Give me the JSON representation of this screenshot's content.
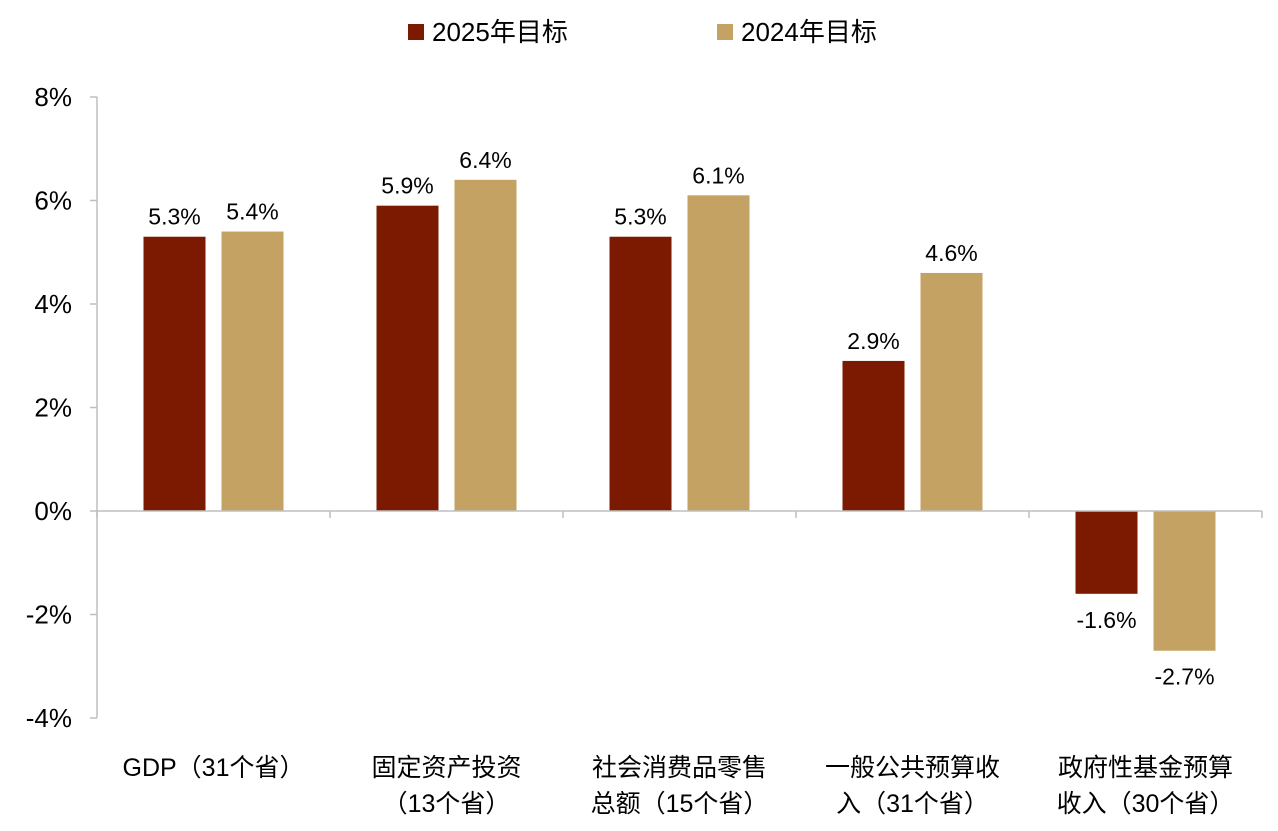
{
  "chart_data": {
    "type": "bar",
    "categories": [
      [
        "GDP（31个省）"
      ],
      [
        "固定资产投资",
        "（13个省）"
      ],
      [
        "社会消费品零售",
        "总额（15个省）"
      ],
      [
        "一般公共预算收",
        "入（31个省）"
      ],
      [
        "政府性基金预算",
        "收入（30个省）"
      ]
    ],
    "series": [
      {
        "name": "2025年目标",
        "values": [
          5.3,
          5.9,
          5.3,
          2.9,
          -1.6
        ],
        "labels": [
          "5.3%",
          "5.9%",
          "5.3%",
          "2.9%",
          "-1.6%"
        ],
        "color": "#7B1A00"
      },
      {
        "name": "2024年目标",
        "values": [
          5.4,
          6.4,
          6.1,
          4.6,
          -2.7
        ],
        "labels": [
          "5.4%",
          "6.4%",
          "6.1%",
          "4.6%",
          "-2.7%"
        ],
        "color": "#C4A263"
      }
    ],
    "ylim": [
      -4,
      8
    ],
    "yticks": [
      8,
      6,
      4,
      2,
      0,
      -2,
      -4
    ],
    "ytick_labels": [
      "8%",
      "6%",
      "4%",
      "2%",
      "0%",
      "-2%",
      "-4%"
    ],
    "legend_position": "top-center",
    "grid": false,
    "axis_color": "#BFBFBF"
  }
}
